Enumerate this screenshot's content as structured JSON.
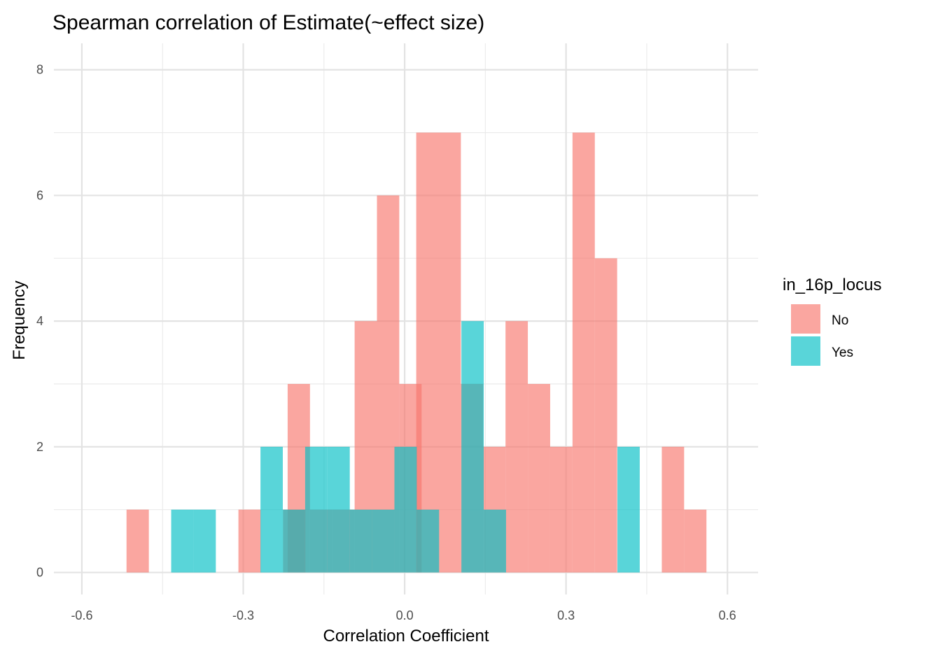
{
  "chart_data": {
    "type": "bar",
    "title": "Spearman correlation of Estimate(~effect size)",
    "xlabel": "Correlation Coefficient",
    "ylabel": "Frequency",
    "xlim": [
      -0.652,
      0.657
    ],
    "ylim": [
      -0.35,
      8.42
    ],
    "x_ticks": [
      -0.6,
      -0.3,
      0.0,
      0.3,
      0.6
    ],
    "x_tick_labels": [
      "-0.6",
      "-0.3",
      "0.0",
      "0.3",
      "0.6"
    ],
    "y_ticks": [
      0,
      2,
      4,
      6,
      8
    ],
    "y_tick_labels": [
      "0",
      "2",
      "4",
      "6",
      "8"
    ],
    "grid": true,
    "legend_position": "right",
    "legend_title": "in_16p_locus",
    "bin_width": 0.0415,
    "series": [
      {
        "name": "No",
        "color": "#F8766D",
        "bins": [
          {
            "start": -0.517,
            "count": 1
          },
          {
            "start": -0.309,
            "count": 1
          },
          {
            "start": -0.226,
            "count": 1
          },
          {
            "start": -0.2175,
            "count": 3
          },
          {
            "start": -0.176,
            "count": 1
          },
          {
            "start": -0.1345,
            "count": 1
          },
          {
            "start": -0.093,
            "count": 4
          },
          {
            "start": -0.0515,
            "count": 6
          },
          {
            "start": -0.01,
            "count": 3
          },
          {
            "start": 0.0215,
            "count": 7
          },
          {
            "start": 0.063,
            "count": 7
          },
          {
            "start": 0.1045,
            "count": 3
          },
          {
            "start": 0.146,
            "count": 2
          },
          {
            "start": 0.1875,
            "count": 4
          },
          {
            "start": 0.229,
            "count": 3
          },
          {
            "start": 0.2705,
            "count": 2
          },
          {
            "start": 0.312,
            "count": 7
          },
          {
            "start": 0.3535,
            "count": 5
          },
          {
            "start": 0.478,
            "count": 2
          },
          {
            "start": 0.5195,
            "count": 1
          }
        ]
      },
      {
        "name": "Yes",
        "color": "#00BFC4",
        "bins": [
          {
            "start": -0.434,
            "count": 1
          },
          {
            "start": -0.3925,
            "count": 1
          },
          {
            "start": -0.268,
            "count": 2
          },
          {
            "start": -0.2265,
            "count": 1
          },
          {
            "start": -0.185,
            "count": 2
          },
          {
            "start": -0.1435,
            "count": 2
          },
          {
            "start": -0.102,
            "count": 1
          },
          {
            "start": -0.0605,
            "count": 1
          },
          {
            "start": -0.019,
            "count": 2
          },
          {
            "start": 0.0225,
            "count": 1
          },
          {
            "start": 0.1055,
            "count": 4
          },
          {
            "start": 0.147,
            "count": 1
          },
          {
            "start": 0.3955,
            "count": 2
          }
        ]
      }
    ]
  }
}
